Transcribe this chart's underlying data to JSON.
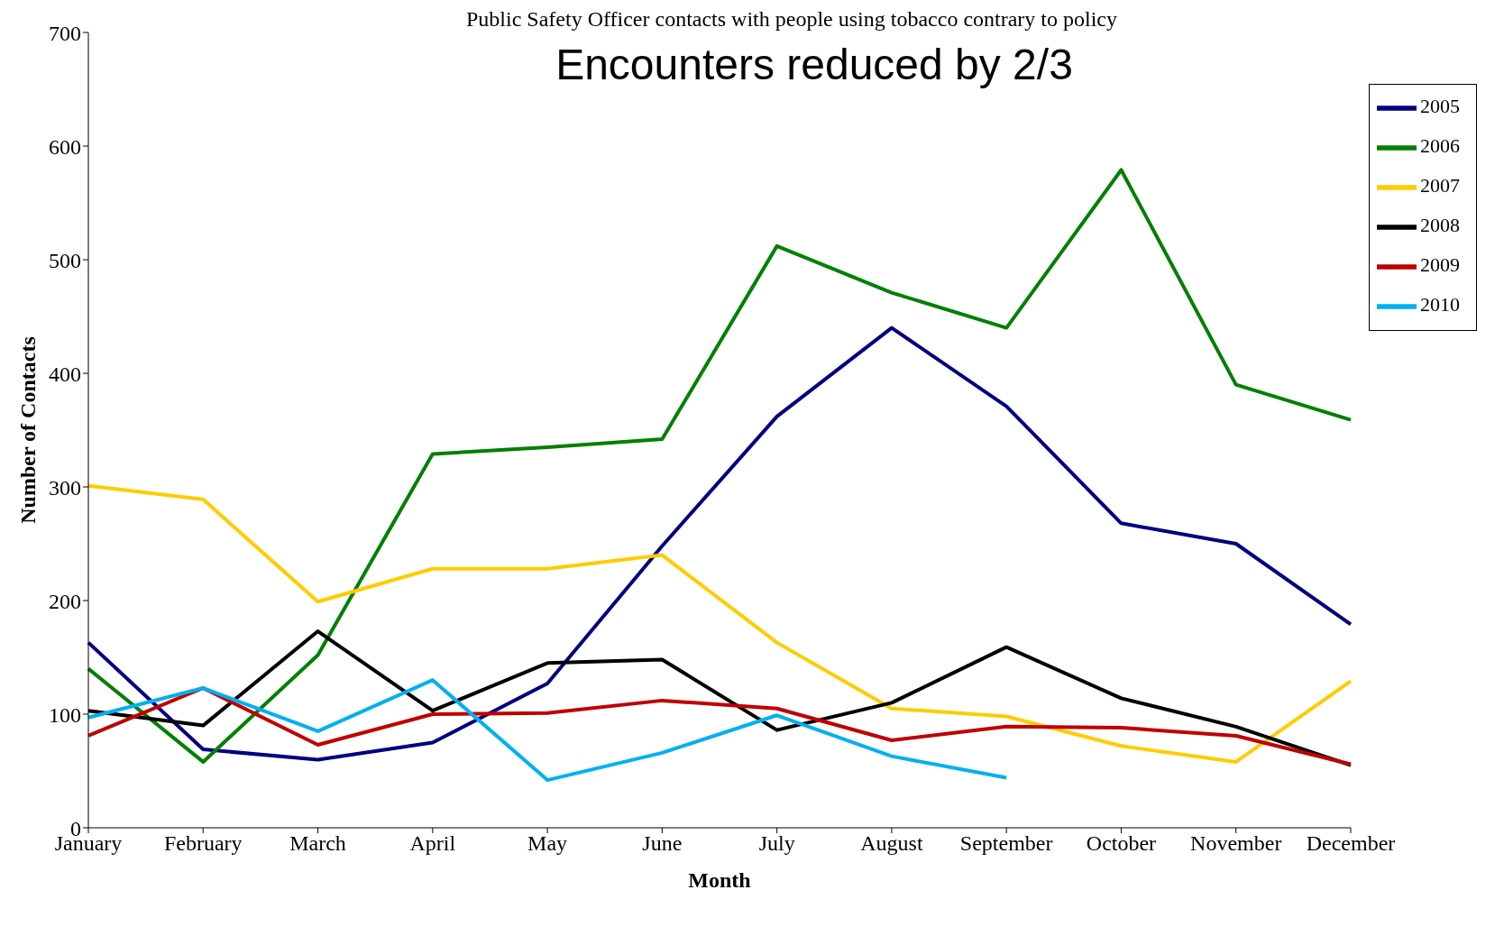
{
  "chart_data": {
    "type": "line",
    "subtitle": "Public Safety Officer contacts with people using tobacco contrary to policy",
    "title": "Encounters reduced by 2/3",
    "xlabel": "Month",
    "ylabel": "Number of Contacts",
    "categories": [
      "January",
      "February",
      "March",
      "April",
      "May",
      "June",
      "July",
      "August",
      "September",
      "October",
      "November",
      "December"
    ],
    "series": [
      {
        "name": "2005",
        "color": "#000080",
        "values": [
          163,
          69,
          60,
          75,
          127,
          248,
          362,
          440,
          371,
          268,
          250,
          179
        ]
      },
      {
        "name": "2006",
        "color": "#008000",
        "values": [
          140,
          58,
          152,
          329,
          335,
          342,
          512,
          471,
          440,
          579,
          390,
          359
        ]
      },
      {
        "name": "2007",
        "color": "#ffcc00",
        "values": [
          301,
          289,
          199,
          228,
          228,
          240,
          163,
          105,
          98,
          72,
          58,
          129
        ]
      },
      {
        "name": "2008",
        "color": "#000000",
        "values": [
          103,
          90,
          173,
          103,
          145,
          148,
          86,
          110,
          159,
          114,
          89,
          55
        ]
      },
      {
        "name": "2009",
        "color": "#c00000",
        "values": [
          81,
          123,
          73,
          100,
          101,
          112,
          105,
          77,
          89,
          88,
          81,
          56
        ]
      },
      {
        "name": "2010",
        "color": "#00b0f0",
        "values": [
          97,
          123,
          85,
          130,
          42,
          66,
          99,
          63,
          44,
          null,
          null,
          null
        ]
      }
    ],
    "ylim": [
      0,
      700
    ],
    "yticks": [
      0,
      100,
      200,
      300,
      400,
      500,
      600,
      700
    ],
    "grid": false,
    "legend": "top right",
    "marker": "none",
    "line_style": "solid"
  }
}
